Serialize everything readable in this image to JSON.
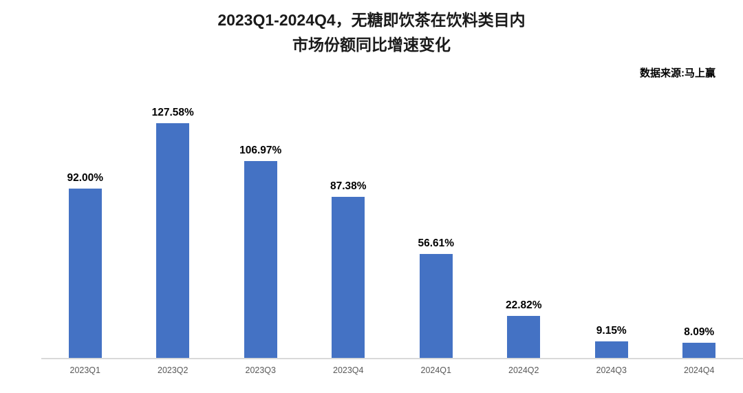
{
  "title": {
    "line1": "2023Q1-2024Q4，无糖即饮茶在饮料类目内",
    "line2": "市场份额同比增速变化"
  },
  "source": "数据来源:马上赢",
  "chart_data": {
    "type": "bar",
    "title": "2023Q1-2024Q4，无糖即饮茶在饮料类目内市场份额同比增速变化",
    "categories": [
      "2023Q1",
      "2023Q2",
      "2023Q3",
      "2023Q4",
      "2024Q1",
      "2024Q2",
      "2024Q3",
      "2024Q4"
    ],
    "values": [
      92.0,
      127.58,
      106.97,
      87.38,
      56.61,
      22.82,
      9.15,
      8.09
    ],
    "labels": [
      "92.00%",
      "127.58%",
      "106.97%",
      "87.38%",
      "56.61%",
      "22.82%",
      "9.15%",
      "8.09%"
    ],
    "xlabel": "",
    "ylabel": "",
    "ylim": [
      0,
      140
    ],
    "grid": false,
    "legend": "none",
    "bar_color": "#4472C4",
    "value_label_color": "#000000",
    "tick_label_color": "#595959",
    "axis_line_color": "#D9D9D9"
  }
}
